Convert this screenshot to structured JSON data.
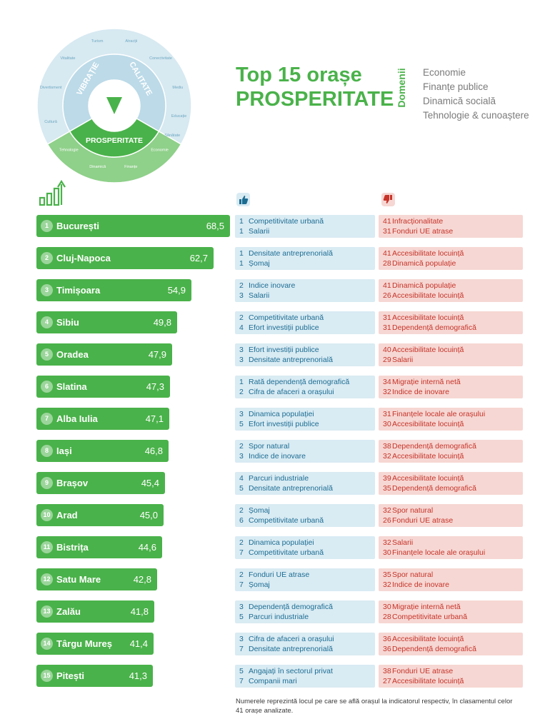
{
  "header": {
    "title_line1": "Top 15 orașe",
    "title_line2": "PROSPERITATE",
    "domains_label": "Domenii",
    "domains": [
      "Economie",
      "Finanțe publice",
      "Dinamică socială",
      "Tehnologie & cunoaștere"
    ]
  },
  "wheel": {
    "center_label": "PROSPERITATE",
    "ring_labels": [
      "VIBRAȚIE",
      "CALITATE"
    ],
    "segments": [
      "Turism",
      "Vitalitate Socială",
      "Divertisment",
      "Cultură & Sport",
      "Atracții",
      "Conectivitate",
      "Mediu Natural",
      "Educație",
      "Sănătate"
    ],
    "prosperity_segments": [
      "Tehnologie & Cunoaștere",
      "Dinamică Socială",
      "Finanțe Publice",
      "Economie"
    ]
  },
  "icons": {
    "growth": "bar-growth-icon",
    "positive": "thumbs-up-icon",
    "negative": "thumbs-down-icon"
  },
  "colors": {
    "green": "#4ab24a",
    "positive_bg": "#d9ebf3",
    "positive_text": "#1d6d93",
    "negative_bg": "#f6d7d3",
    "negative_text": "#c6342a"
  },
  "chart_data": {
    "type": "bar",
    "orientation": "horizontal",
    "title": "Top 15 orașe PROSPERITATE",
    "categories": [
      "București",
      "Cluj-Napoca",
      "Timișoara",
      "Sibiu",
      "Oradea",
      "Slatina",
      "Alba Iulia",
      "Iași",
      "Brașov",
      "Arad",
      "Bistrița",
      "Satu Mare",
      "Zalău",
      "Târgu Mureș",
      "Pitești"
    ],
    "values": [
      68.5,
      62.7,
      54.9,
      49.8,
      47.9,
      47.3,
      47.1,
      46.8,
      45.4,
      45.0,
      44.6,
      42.8,
      41.8,
      41.4,
      41.3
    ],
    "xlim": [
      0,
      68.5
    ],
    "grid": false,
    "legend": "none"
  },
  "rows": [
    {
      "rank": "1",
      "city": "București",
      "score": "68,5",
      "pos": [
        {
          "n": "1",
          "t": "Competitivitate urbană"
        },
        {
          "n": "1",
          "t": "Salarii"
        }
      ],
      "neg": [
        {
          "n": "41",
          "t": "Infracționalitate"
        },
        {
          "n": "31",
          "t": "Fonduri UE atrase"
        }
      ]
    },
    {
      "rank": "2",
      "city": "Cluj-Napoca",
      "score": "62,7",
      "pos": [
        {
          "n": "1",
          "t": "Densitate antreprenorială"
        },
        {
          "n": "1",
          "t": "Șomaj"
        }
      ],
      "neg": [
        {
          "n": "41",
          "t": "Accesibilitate locuință"
        },
        {
          "n": "28",
          "t": "Dinamică populație"
        }
      ]
    },
    {
      "rank": "3",
      "city": "Timișoara",
      "score": "54,9",
      "pos": [
        {
          "n": "2",
          "t": "Indice inovare"
        },
        {
          "n": "3",
          "t": "Salarii"
        }
      ],
      "neg": [
        {
          "n": "41",
          "t": "Dinamică populație"
        },
        {
          "n": "26",
          "t": "Accesibilitate locuință"
        }
      ]
    },
    {
      "rank": "4",
      "city": "Sibiu",
      "score": "49,8",
      "pos": [
        {
          "n": "2",
          "t": "Competitivitate urbană"
        },
        {
          "n": "4",
          "t": "Efort investiții publice"
        }
      ],
      "neg": [
        {
          "n": "31",
          "t": "Accesibilitate locuință"
        },
        {
          "n": "31",
          "t": "Dependență demografică"
        }
      ]
    },
    {
      "rank": "5",
      "city": "Oradea",
      "score": "47,9",
      "pos": [
        {
          "n": "3",
          "t": "Efort investiții publice"
        },
        {
          "n": "3",
          "t": "Densitate antreprenorială"
        }
      ],
      "neg": [
        {
          "n": "40",
          "t": "Accesibilitate locuință"
        },
        {
          "n": "29",
          "t": "Salarii"
        }
      ]
    },
    {
      "rank": "6",
      "city": "Slatina",
      "score": "47,3",
      "pos": [
        {
          "n": "1",
          "t": "Rată dependență demografică"
        },
        {
          "n": "2",
          "t": "Cifra de afaceri a orașului"
        }
      ],
      "neg": [
        {
          "n": "34",
          "t": "Migrație internă netă"
        },
        {
          "n": "32",
          "t": "Indice de inovare"
        }
      ]
    },
    {
      "rank": "7",
      "city": "Alba Iulia",
      "score": "47,1",
      "pos": [
        {
          "n": "3",
          "t": "Dinamica populației"
        },
        {
          "n": "5",
          "t": "Efort investiții publice"
        }
      ],
      "neg": [
        {
          "n": "31",
          "t": "Finanțele locale ale orașului"
        },
        {
          "n": "30",
          "t": "Accesibilitate locuință"
        }
      ]
    },
    {
      "rank": "8",
      "city": "Iași",
      "score": "46,8",
      "pos": [
        {
          "n": "2",
          "t": "Spor natural"
        },
        {
          "n": "3",
          "t": "Indice de inovare"
        }
      ],
      "neg": [
        {
          "n": "38",
          "t": "Dependență demografică"
        },
        {
          "n": "32",
          "t": "Accesibilitate locuință"
        }
      ]
    },
    {
      "rank": "9",
      "city": "Brașov",
      "score": "45,4",
      "pos": [
        {
          "n": "4",
          "t": "Parcuri industriale"
        },
        {
          "n": "5",
          "t": "Densitate antreprenorială"
        }
      ],
      "neg": [
        {
          "n": "39",
          "t": "Accesibilitate locuință"
        },
        {
          "n": "35",
          "t": "Dependență demografică"
        }
      ]
    },
    {
      "rank": "10",
      "city": "Arad",
      "score": "45,0",
      "pos": [
        {
          "n": "2",
          "t": "Șomaj"
        },
        {
          "n": "6",
          "t": "Competitivitate urbană"
        }
      ],
      "neg": [
        {
          "n": "32",
          "t": "Spor natural"
        },
        {
          "n": "26",
          "t": "Fonduri UE atrase"
        }
      ]
    },
    {
      "rank": "11",
      "city": "Bistrița",
      "score": "44,6",
      "pos": [
        {
          "n": "2",
          "t": "Dinamica populației"
        },
        {
          "n": "7",
          "t": "Competitivitate urbană"
        }
      ],
      "neg": [
        {
          "n": "32",
          "t": "Salarii"
        },
        {
          "n": "30",
          "t": "Finanțele locale ale orașului"
        }
      ]
    },
    {
      "rank": "12",
      "city": "Satu Mare",
      "score": "42,8",
      "pos": [
        {
          "n": "2",
          "t": "Fonduri UE atrase"
        },
        {
          "n": "7",
          "t": "Șomaj"
        }
      ],
      "neg": [
        {
          "n": "35",
          "t": "Spor natural"
        },
        {
          "n": "32",
          "t": "Indice de inovare"
        }
      ]
    },
    {
      "rank": "13",
      "city": "Zalău",
      "score": "41,8",
      "pos": [
        {
          "n": "3",
          "t": "Dependență demografică"
        },
        {
          "n": "5",
          "t": "Parcuri industriale"
        }
      ],
      "neg": [
        {
          "n": "30",
          "t": "Migrație internă netă"
        },
        {
          "n": "28",
          "t": "Competitivitate urbană"
        }
      ]
    },
    {
      "rank": "14",
      "city": "Târgu Mureș",
      "score": "41,4",
      "pos": [
        {
          "n": "3",
          "t": "Cifra de afaceri a orașului"
        },
        {
          "n": "7",
          "t": "Densitate antreprenorială"
        }
      ],
      "neg": [
        {
          "n": "36",
          "t": "Accesibilitate locuință"
        },
        {
          "n": "36",
          "t": "Dependență demografică"
        }
      ]
    },
    {
      "rank": "15",
      "city": "Pitești",
      "score": "41,3",
      "pos": [
        {
          "n": "5",
          "t": "Angajați în sectorul privat"
        },
        {
          "n": "7",
          "t": "Companii mari"
        }
      ],
      "neg": [
        {
          "n": "38",
          "t": "Fonduri UE atrase"
        },
        {
          "n": "27",
          "t": "Accesibilitate locuință"
        }
      ]
    }
  ],
  "footnote": "Numerele reprezintă locul pe care se află orașul la indicatorul respectiv, în clasamentul celor 41 orașe analizate."
}
